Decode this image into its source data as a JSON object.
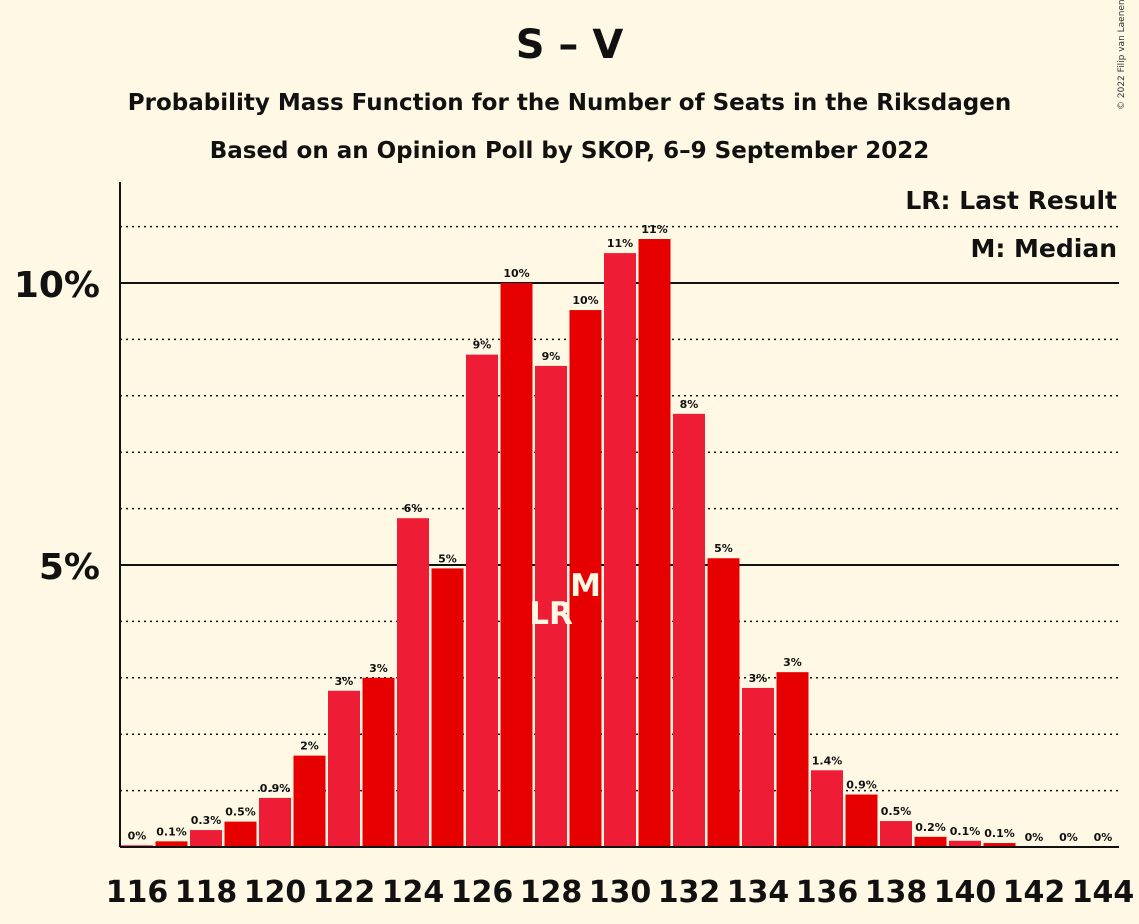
{
  "title": "S – V",
  "subtitle1": "Probability Mass Function for the Number of Seats in the Riksdagen",
  "subtitle2": "Based on an Opinion Poll by SKOP, 6–9 September 2022",
  "copyright": "© 2022 Filip van Laenen",
  "legend": {
    "last_result": "LR: Last Result",
    "median": "M: Median"
  },
  "colors": {
    "background": "#fef8e4",
    "bar_dark": "#e60000",
    "bar_light": "#ee1c35",
    "marker_text": "#fef8e4"
  },
  "chart_data": {
    "type": "bar",
    "xlabel": "",
    "ylabel": "",
    "ylim": [
      0,
      11.8
    ],
    "y_ticks": [
      {
        "value": 5,
        "label": "5%"
      },
      {
        "value": 10,
        "label": "10%"
      }
    ],
    "grid": "solid at 5% steps, dotted at 1% steps",
    "x_tick_labels": [
      "116",
      "118",
      "120",
      "122",
      "124",
      "126",
      "128",
      "130",
      "132",
      "134",
      "136",
      "138",
      "140",
      "142",
      "144"
    ],
    "categories": [
      116,
      117,
      118,
      119,
      120,
      121,
      122,
      123,
      124,
      125,
      126,
      127,
      128,
      129,
      130,
      131,
      132,
      133,
      134,
      135,
      136,
      137,
      138,
      139,
      140,
      141,
      142,
      143,
      144
    ],
    "values": [
      0.03,
      0.1,
      0.3,
      0.45,
      0.87,
      1.62,
      2.77,
      3.0,
      5.83,
      4.94,
      8.73,
      10.0,
      8.53,
      9.52,
      10.53,
      10.78,
      7.68,
      5.12,
      2.82,
      3.1,
      1.36,
      0.93,
      0.46,
      0.18,
      0.11,
      0.07,
      0.0,
      0.0,
      0.0
    ],
    "value_labels": [
      "0%",
      "0.1%",
      "0.3%",
      "0.5%",
      "0.9%",
      "2%",
      "3%",
      "3%",
      "6%",
      "5%",
      "9%",
      "10%",
      "9%",
      "10%",
      "11%",
      "11%",
      "8%",
      "5%",
      "3%",
      "3%",
      "1.4%",
      "0.9%",
      "0.5%",
      "0.2%",
      "0.1%",
      "0.1%",
      "0%",
      "0%",
      "0%"
    ],
    "markers": [
      {
        "seat": 128,
        "label": "LR"
      },
      {
        "seat": 129,
        "label": "M"
      }
    ]
  }
}
